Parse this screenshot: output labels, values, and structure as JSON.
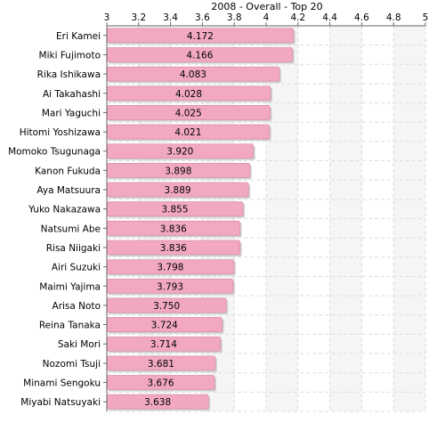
{
  "chart_data": {
    "type": "bar",
    "orientation": "horizontal",
    "title": "2008 - Overall - Top 20",
    "xlabel": "",
    "ylabel": "",
    "xlim": [
      3,
      5
    ],
    "x_ticks": [
      "3",
      "3.2",
      "3.4",
      "3.6",
      "3.8",
      "4",
      "4.2",
      "4.4",
      "4.6",
      "4.8",
      "5"
    ],
    "x_tick_values": [
      3,
      3.2,
      3.4,
      3.6,
      3.8,
      4,
      4.2,
      4.4,
      4.6,
      4.8,
      5
    ],
    "categories": [
      "Eri Kamei",
      "Miki Fujimoto",
      "Rika Ishikawa",
      "Ai Takahashi",
      "Mari Yaguchi",
      "Hitomi Yoshizawa",
      "Momoko Tsugunaga",
      "Kanon Fukuda",
      "Aya Matsuura",
      "Yuko Nakazawa",
      "Natsumi Abe",
      "Risa Niigaki",
      "Airi Suzuki",
      "Maimi Yajima",
      "Arisa Noto",
      "Reina Tanaka",
      "Saki Mori",
      "Nozomi Tsuji",
      "Minami Sengoku",
      "Miyabi Natsuyaki"
    ],
    "values": [
      4.172,
      4.166,
      4.083,
      4.028,
      4.025,
      4.021,
      3.92,
      3.898,
      3.889,
      3.855,
      3.836,
      3.836,
      3.798,
      3.793,
      3.75,
      3.724,
      3.714,
      3.681,
      3.676,
      3.638
    ],
    "value_labels": [
      "4.172",
      "4.166",
      "4.083",
      "4.028",
      "4.025",
      "4.021",
      "3.920",
      "3.898",
      "3.889",
      "3.855",
      "3.836",
      "3.836",
      "3.798",
      "3.793",
      "3.750",
      "3.724",
      "3.714",
      "3.681",
      "3.676",
      "3.638"
    ],
    "grid": true,
    "legend": "none",
    "colors": {
      "bar": "#f2a9c0",
      "bar_stroke": "#d992aa",
      "bar_shadow": "#d0d0d0",
      "axis": "#666666",
      "grid": "#dddddd",
      "band_alt": "#f5f5f5",
      "text": "#000000"
    }
  }
}
